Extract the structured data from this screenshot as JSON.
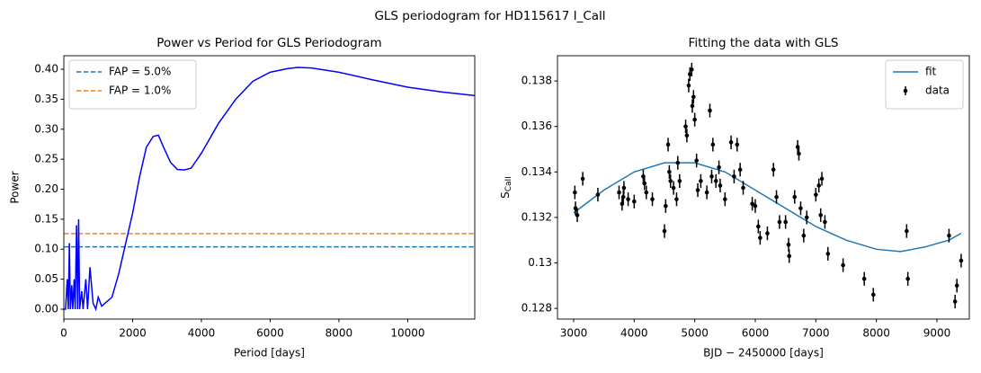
{
  "title": "GLS periodogram for HD115617 I_Call",
  "chart_data": [
    {
      "type": "line",
      "title": "Power vs Period for GLS Periodogram",
      "xlabel": "Period [days]",
      "ylabel": "Power",
      "xlim": [
        0,
        11950
      ],
      "ylim": [
        -0.0165,
        0.4225
      ],
      "xticks": [
        0,
        2000,
        4000,
        6000,
        8000,
        10000
      ],
      "yticks": [
        {
          "value": 0,
          "label": "0.00"
        },
        0.05,
        {
          "value": 0.1,
          "label": "0.10"
        },
        0.15,
        {
          "value": 0.2,
          "label": "0.20"
        },
        0.25,
        {
          "value": 0.3,
          "label": "0.30"
        },
        0.35,
        {
          "value": 0.4,
          "label": "0.40"
        }
      ],
      "legend": "upper left",
      "hlines": [
        {
          "name": "FAP =  5.0%",
          "color": "#1f77b4",
          "value": 0.104
        },
        {
          "name": "FAP =  1.0%",
          "color": "#ff7f0e",
          "value": 0.126
        }
      ],
      "series": [
        {
          "type": "line",
          "color": "#0000ff",
          "x": [
            0,
            50,
            100,
            130,
            160,
            190,
            230,
            260,
            300,
            330,
            370,
            400,
            430,
            460,
            520,
            560,
            640,
            690,
            760,
            850,
            930,
            1000,
            1100,
            1200,
            1400,
            1600,
            1800,
            2000,
            2200,
            2400,
            2600,
            2750,
            2900,
            3100,
            3300,
            3500,
            3700,
            4000,
            4500,
            5000,
            5500,
            6000,
            6500,
            6800,
            7200,
            8000,
            9000,
            10000,
            11000,
            11950
          ],
          "values": [
            0,
            0,
            0.05,
            0,
            0.11,
            0,
            0.04,
            0,
            0.05,
            0,
            0.14,
            0,
            0.15,
            0,
            0.03,
            0,
            0.05,
            0,
            0.07,
            0.01,
            0,
            0.02,
            0.005,
            0.01,
            0.02,
            0.06,
            0.11,
            0.16,
            0.22,
            0.27,
            0.288,
            0.29,
            0.27,
            0.245,
            0.233,
            0.232,
            0.235,
            0.26,
            0.31,
            0.35,
            0.38,
            0.395,
            0.401,
            0.403,
            0.402,
            0.395,
            0.382,
            0.37,
            0.362,
            0.356
          ]
        }
      ]
    },
    {
      "type": "errorbar",
      "title": "Fitting the data with GLS",
      "xlabel": "BJD − 2450000 [days]",
      "ylabel": "S",
      "ylabel_sub": "CaII",
      "xlim": [
        2733,
        9535
      ],
      "ylim": [
        0.12753,
        0.13911
      ],
      "xticks": [
        3000,
        4000,
        5000,
        6000,
        7000,
        8000,
        9000
      ],
      "yticks": [
        0.128,
        0.13,
        0.132,
        0.134,
        0.136,
        0.138
      ],
      "legend": "upper right",
      "series": [
        {
          "type": "line",
          "name": "fit",
          "color": "#1f77b4",
          "x": [
            3000,
            3500,
            4000,
            4500,
            5000,
            5500,
            6000,
            6500,
            7000,
            7500,
            8000,
            8400,
            8800,
            9200,
            9400
          ],
          "values": [
            0.1322,
            0.1332,
            0.134,
            0.1344,
            0.1344,
            0.134,
            0.1332,
            0.1324,
            0.1316,
            0.131,
            0.1306,
            0.1305,
            0.1307,
            0.131,
            0.1313
          ]
        },
        {
          "type": "errorbar",
          "name": "data",
          "color": "#000000",
          "x": [
            3020,
            3030,
            3060,
            3150,
            3400,
            3750,
            3800,
            3820,
            3830,
            3900,
            4000,
            4150,
            4170,
            4200,
            4300,
            4500,
            4520,
            4560,
            4580,
            4600,
            4650,
            4700,
            4720,
            4750,
            4850,
            4870,
            4900,
            4920,
            4950,
            4960,
            4980,
            5000,
            5030,
            5050,
            5100,
            5200,
            5250,
            5280,
            5300,
            5350,
            5400,
            5420,
            5500,
            5600,
            5650,
            5700,
            5750,
            5800,
            5950,
            6000,
            6050,
            6080,
            6200,
            6300,
            6350,
            6400,
            6500,
            6550,
            6560,
            6650,
            6700,
            6720,
            6750,
            6800,
            6850,
            7000,
            7050,
            7080,
            7100,
            7150,
            7200,
            7450,
            7800,
            7950,
            8500,
            8520,
            9200,
            9300,
            9330,
            9400
          ],
          "values": [
            0.1331,
            0.1324,
            0.1321,
            0.1337,
            0.133,
            0.1331,
            0.1326,
            0.1329,
            0.1333,
            0.1328,
            0.1327,
            0.1338,
            0.1335,
            0.1331,
            0.1328,
            0.1314,
            0.1325,
            0.1352,
            0.134,
            0.1336,
            0.1333,
            0.1328,
            0.1344,
            0.1336,
            0.136,
            0.1356,
            0.1378,
            0.1383,
            0.1385,
            0.1369,
            0.1373,
            0.1363,
            0.1345,
            0.1332,
            0.1336,
            0.1331,
            0.1367,
            0.1338,
            0.1352,
            0.1336,
            0.1342,
            0.1334,
            0.1328,
            0.1353,
            0.1338,
            0.1352,
            0.1341,
            0.1333,
            0.1326,
            0.1325,
            0.1316,
            0.1311,
            0.1313,
            0.1341,
            0.1329,
            0.1318,
            0.1318,
            0.1308,
            0.1303,
            0.1329,
            0.1351,
            0.1348,
            0.1324,
            0.1312,
            0.132,
            0.133,
            0.1334,
            0.1321,
            0.1337,
            0.1318,
            0.1304,
            0.1299,
            0.1293,
            0.1286,
            0.1314,
            0.1293,
            0.1312,
            0.1283,
            0.129,
            0.1301
          ],
          "errors": [
            0.0003,
            0.0003,
            0.0003,
            0.0003,
            0.0003,
            0.0003,
            0.0003,
            0.0003,
            0.0003,
            0.0003,
            0.0003,
            0.0003,
            0.0003,
            0.0003,
            0.0003,
            0.0003,
            0.0003,
            0.0003,
            0.0003,
            0.0003,
            0.0003,
            0.0003,
            0.0003,
            0.0003,
            0.0003,
            0.0003,
            0.0003,
            0.0003,
            0.0003,
            0.0003,
            0.0003,
            0.0003,
            0.0003,
            0.0003,
            0.0003,
            0.0003,
            0.0003,
            0.0003,
            0.0003,
            0.0003,
            0.0003,
            0.0003,
            0.0003,
            0.0003,
            0.0003,
            0.0003,
            0.0003,
            0.0003,
            0.0003,
            0.0003,
            0.0003,
            0.0003,
            0.0003,
            0.0003,
            0.0003,
            0.0003,
            0.0003,
            0.0003,
            0.0003,
            0.0003,
            0.0003,
            0.0003,
            0.0003,
            0.0003,
            0.0003,
            0.0003,
            0.0003,
            0.0003,
            0.0003,
            0.0003,
            0.0003,
            0.0003,
            0.0003,
            0.0003,
            0.0003,
            0.0003,
            0.0003,
            0.0003,
            0.0003,
            0.0003
          ]
        }
      ]
    }
  ]
}
